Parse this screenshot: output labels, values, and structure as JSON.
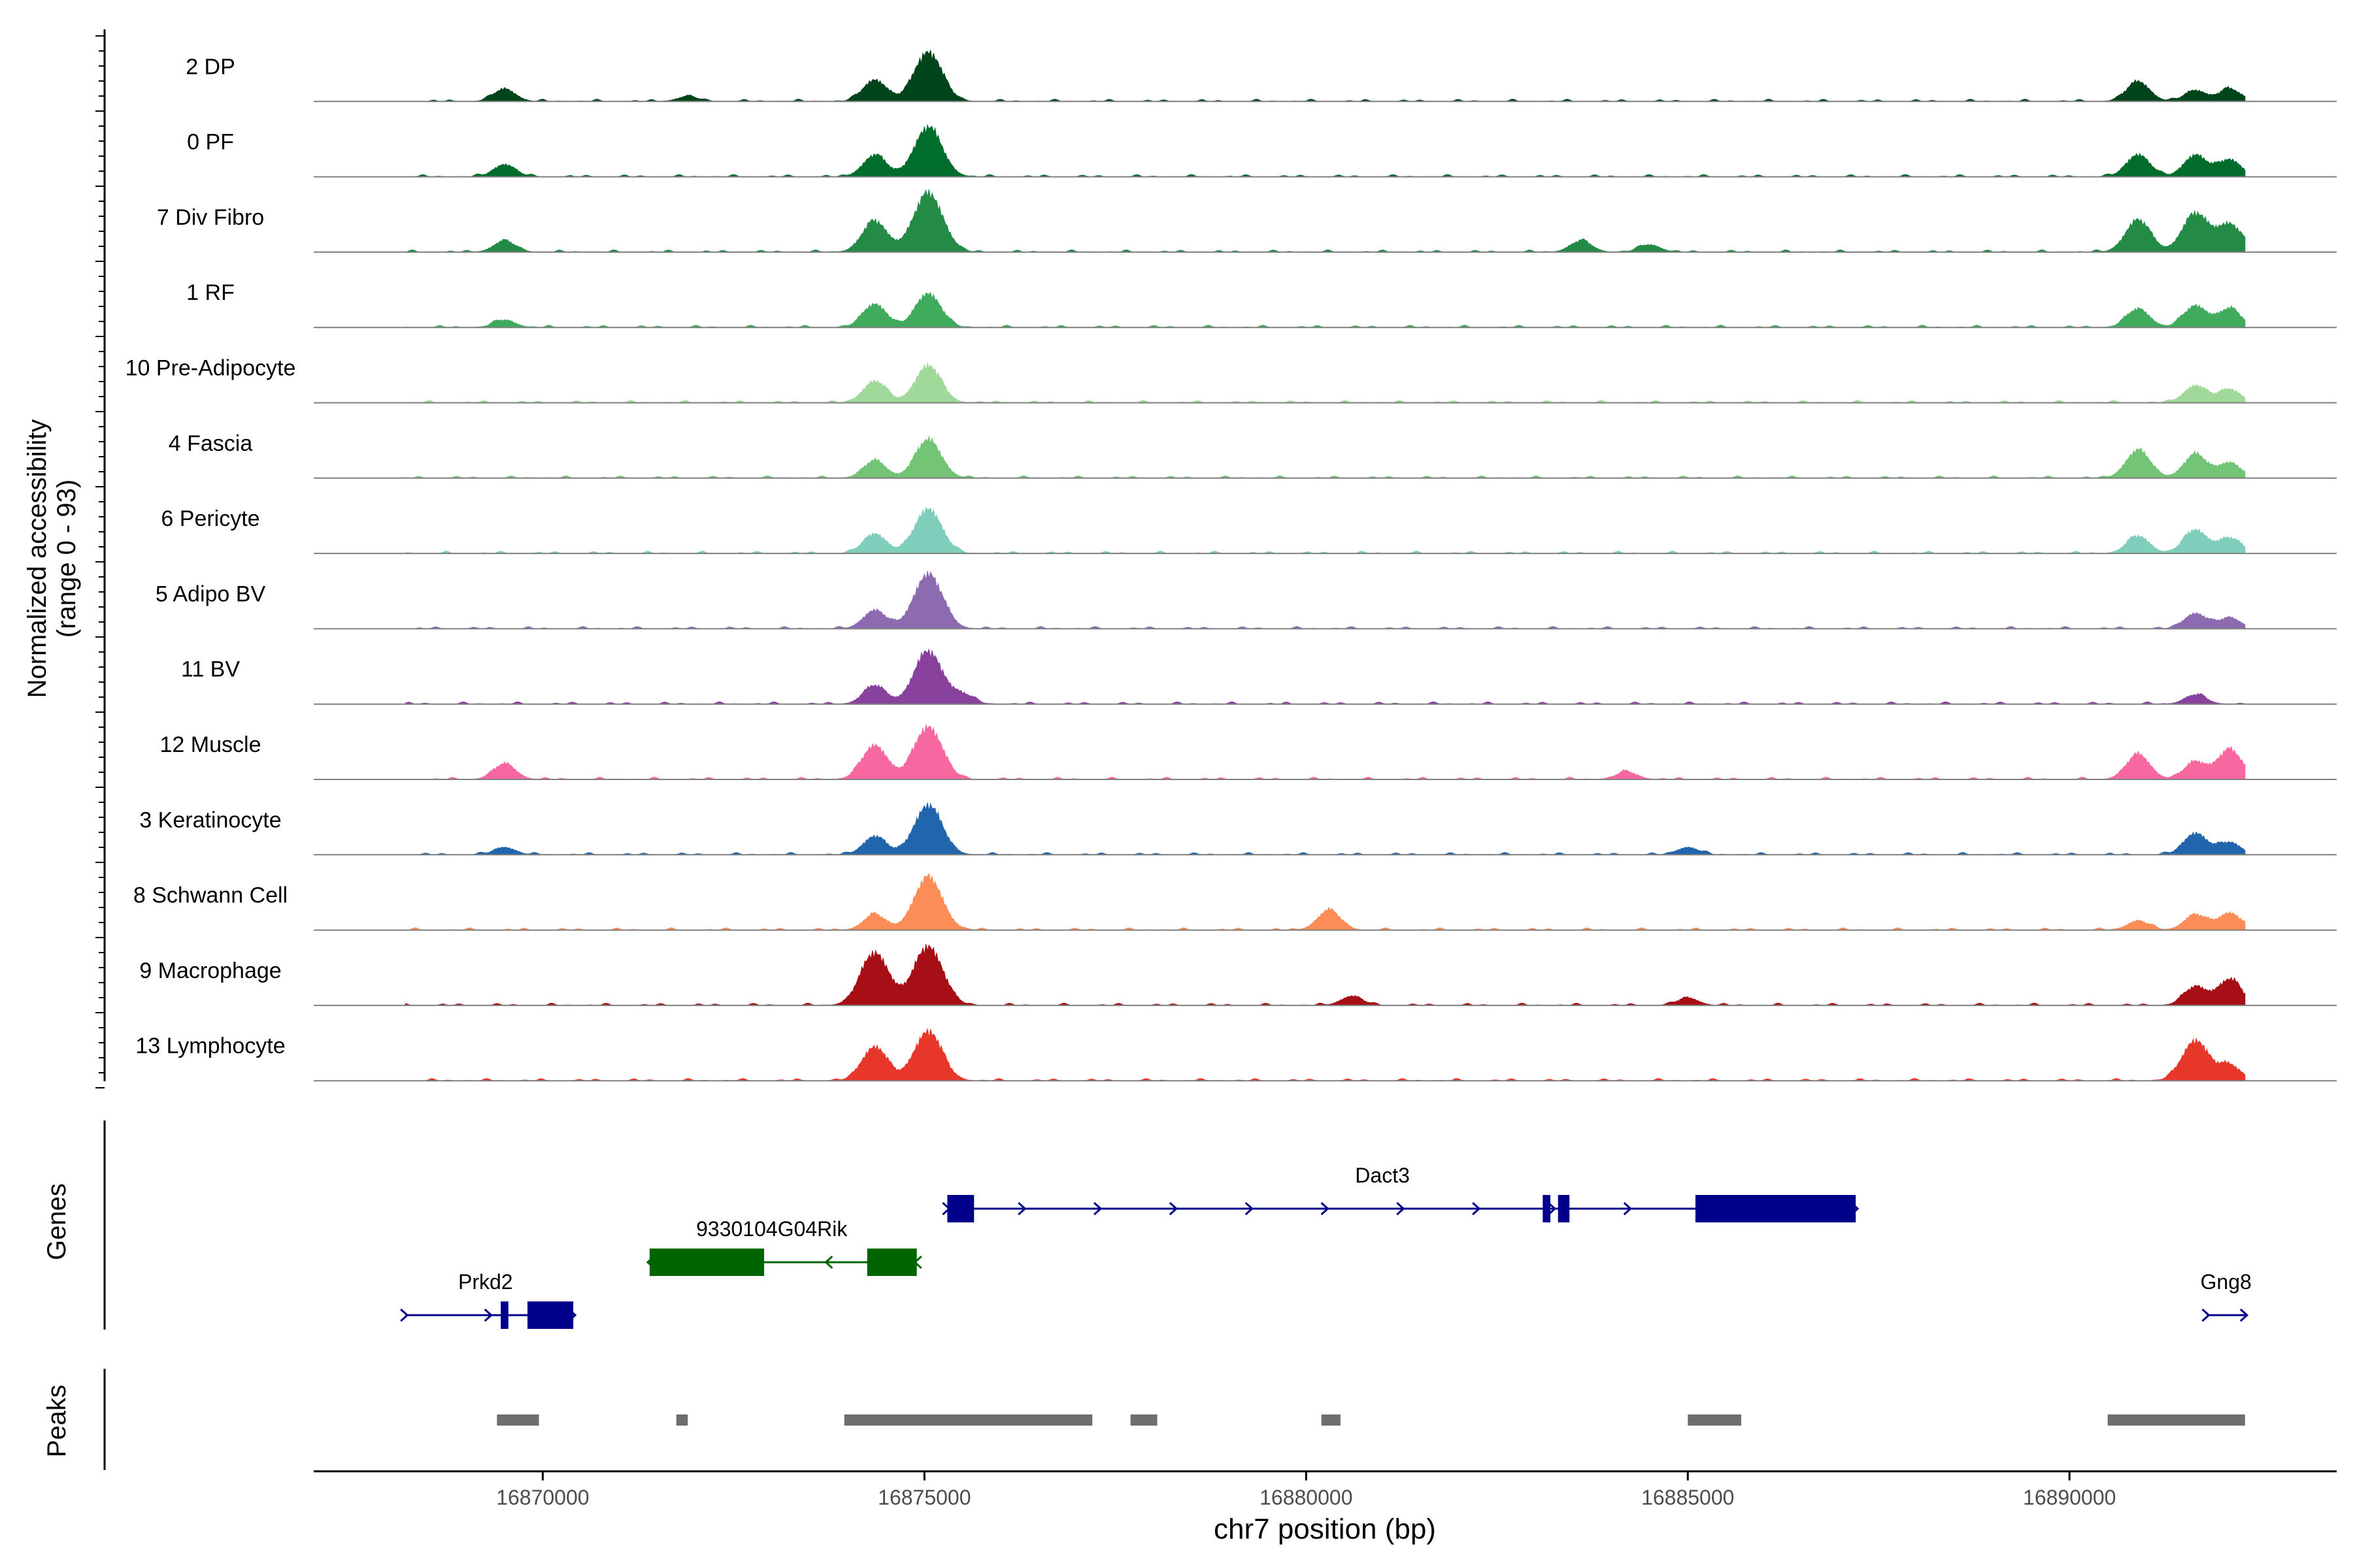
{
  "chart_data": {
    "type": "area",
    "title": "",
    "ylabel_line1": "Normalized accessibility",
    "ylabel_line2": "(range 0 - 93)",
    "xlabel": "chr7 position (bp)",
    "xlim": [
      16867000,
      16893500
    ],
    "data_range": [
      16868200,
      16892300
    ],
    "x_ticks": [
      16870000,
      16875000,
      16880000,
      16885000,
      16890000
    ],
    "x_tick_labels": [
      "16870000",
      "16875000",
      "16880000",
      "16885000",
      "16890000"
    ],
    "tracks": [
      {
        "name": "2 DP",
        "color": "#00441b",
        "peaks": [
          [
            16869500,
            0.2
          ],
          [
            16871900,
            0.08
          ],
          [
            16874350,
            0.35
          ],
          [
            16875050,
            0.8
          ],
          [
            16890900,
            0.32
          ],
          [
            16891650,
            0.18
          ],
          [
            16892100,
            0.2
          ]
        ]
      },
      {
        "name": "0 PF",
        "color": "#006d2c",
        "peaks": [
          [
            16869500,
            0.2
          ],
          [
            16874350,
            0.35
          ],
          [
            16875050,
            0.8
          ],
          [
            16890900,
            0.36
          ],
          [
            16891650,
            0.35
          ],
          [
            16892100,
            0.28
          ]
        ]
      },
      {
        "name": "7 Div Fibro",
        "color": "#238b45",
        "peaks": [
          [
            16869500,
            0.18
          ],
          [
            16874350,
            0.5
          ],
          [
            16875050,
            0.95
          ],
          [
            16883600,
            0.18
          ],
          [
            16884500,
            0.12
          ],
          [
            16890900,
            0.52
          ],
          [
            16891650,
            0.62
          ],
          [
            16892100,
            0.45
          ]
        ]
      },
      {
        "name": "1 RF",
        "color": "#41ab5d",
        "peaks": [
          [
            16869500,
            0.12
          ],
          [
            16874350,
            0.38
          ],
          [
            16875050,
            0.55
          ],
          [
            16890900,
            0.3
          ],
          [
            16891650,
            0.35
          ],
          [
            16892100,
            0.3
          ]
        ]
      },
      {
        "name": "10 Pre-Adipocyte",
        "color": "#a1d99b",
        "peaks": [
          [
            16874350,
            0.35
          ],
          [
            16875050,
            0.6
          ],
          [
            16891650,
            0.28
          ],
          [
            16892100,
            0.22
          ]
        ]
      },
      {
        "name": "4 Fascia",
        "color": "#74c476",
        "peaks": [
          [
            16874350,
            0.28
          ],
          [
            16875050,
            0.62
          ],
          [
            16890900,
            0.45
          ],
          [
            16891650,
            0.38
          ],
          [
            16892100,
            0.25
          ]
        ]
      },
      {
        "name": "6 Pericyte",
        "color": "#7fcdbb",
        "peaks": [
          [
            16874350,
            0.32
          ],
          [
            16875050,
            0.72
          ],
          [
            16890900,
            0.28
          ],
          [
            16891650,
            0.38
          ],
          [
            16892100,
            0.25
          ]
        ]
      },
      {
        "name": "5 Adipo BV",
        "color": "#8c6bb1",
        "peaks": [
          [
            16874350,
            0.3
          ],
          [
            16875050,
            0.88
          ],
          [
            16891650,
            0.25
          ],
          [
            16892100,
            0.18
          ]
        ]
      },
      {
        "name": "11 BV",
        "color": "#88419d",
        "peaks": [
          [
            16874350,
            0.3
          ],
          [
            16875050,
            0.85
          ],
          [
            16875500,
            0.15
          ],
          [
            16891650,
            0.15
          ]
        ]
      },
      {
        "name": "12 Muscle",
        "color": "#f768a1",
        "peaks": [
          [
            16869500,
            0.25
          ],
          [
            16874350,
            0.55
          ],
          [
            16875050,
            0.85
          ],
          [
            16884200,
            0.12
          ],
          [
            16890900,
            0.4
          ],
          [
            16891650,
            0.28
          ],
          [
            16892100,
            0.48
          ]
        ]
      },
      {
        "name": "3 Keratinocyte",
        "color": "#2166ac",
        "peaks": [
          [
            16869500,
            0.12
          ],
          [
            16874350,
            0.3
          ],
          [
            16875050,
            0.8
          ],
          [
            16885000,
            0.12
          ],
          [
            16891650,
            0.35
          ],
          [
            16892100,
            0.2
          ]
        ]
      },
      {
        "name": "8 Schwann Cell",
        "color": "#fc8d59",
        "peaks": [
          [
            16874350,
            0.25
          ],
          [
            16875050,
            0.85
          ],
          [
            16880300,
            0.32
          ],
          [
            16890900,
            0.15
          ],
          [
            16891650,
            0.25
          ],
          [
            16892100,
            0.28
          ]
        ]
      },
      {
        "name": "9 Macrophage",
        "color": "#a50f15",
        "peaks": [
          [
            16874350,
            0.85
          ],
          [
            16875050,
            0.95
          ],
          [
            16880600,
            0.15
          ],
          [
            16885000,
            0.12
          ],
          [
            16891650,
            0.3
          ],
          [
            16892100,
            0.42
          ]
        ]
      },
      {
        "name": "13 Lymphocyte",
        "color": "#e7372b",
        "peaks": [
          [
            16874350,
            0.55
          ],
          [
            16875050,
            0.8
          ],
          [
            16891650,
            0.65
          ],
          [
            16892100,
            0.25
          ]
        ]
      }
    ],
    "genes_label": "Genes",
    "genes": [
      {
        "name": "Dact3",
        "strand": "+",
        "color": "#00008b",
        "start": 16875300,
        "end": 16887200,
        "label_pos": 16881000,
        "row": 1,
        "exons": [
          [
            16875300,
            16875650
          ],
          [
            16883100,
            16883200
          ],
          [
            16883300,
            16883450
          ],
          [
            16885100,
            16887200
          ]
        ]
      },
      {
        "name": "9330104G04Rik",
        "strand": "-",
        "color": "#006400",
        "start": 16871400,
        "end": 16874900,
        "label_pos": 16873000,
        "row": 2,
        "exons": [
          [
            16871400,
            16872900
          ],
          [
            16874250,
            16874900
          ]
        ]
      },
      {
        "name": "Prkd2",
        "strand": "+",
        "color": "#00008b",
        "start": 16868200,
        "end": 16870400,
        "label_pos": 16869250,
        "row": 3,
        "exons": [
          [
            16869450,
            16869550
          ],
          [
            16869800,
            16870400
          ]
        ]
      },
      {
        "name": "Gng8",
        "strand": "+",
        "color": "#00008b",
        "start": 16891800,
        "end": 16892300,
        "label_pos": 16892050,
        "row": 3,
        "exons": []
      }
    ],
    "peaks_label": "Peaks",
    "peaks_color": "#6e6e6e",
    "peaks": [
      [
        16869400,
        16869950
      ],
      [
        16871750,
        16871900
      ],
      [
        16873950,
        16877200
      ],
      [
        16877700,
        16878050
      ],
      [
        16880200,
        16880450
      ],
      [
        16885000,
        16885700
      ],
      [
        16890500,
        16892300
      ]
    ]
  }
}
